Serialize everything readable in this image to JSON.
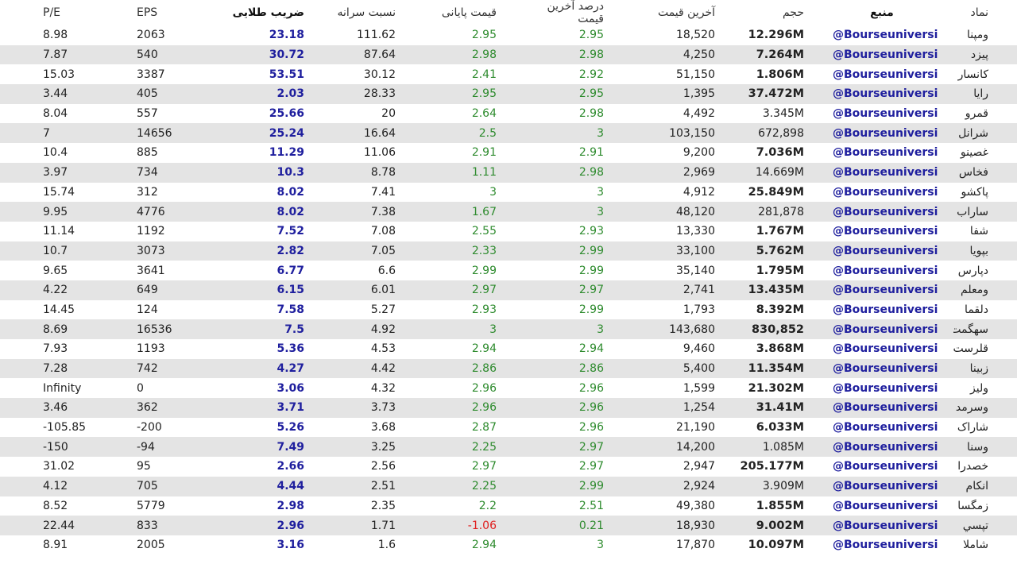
{
  "colors": {
    "gold_blue": "#1f1f9e",
    "positive_green": "#2e8b2e",
    "negative_red": "#e02020",
    "row_stripe": "#e4e4e4"
  },
  "headers": {
    "pe": "P/E",
    "eps": "EPS",
    "gold_ratio": "ضریب طلایی",
    "per_share_ratio": "نسبت سرانه",
    "closing_price": "قیمت پایانی",
    "last_price_pct": "درصد آخرین قیمت",
    "last_price": "آخرین قیمت",
    "volume": "حجم",
    "source": "منبع",
    "symbol": "نماد"
  },
  "rows": [
    {
      "pe": "8.98",
      "eps": "2063",
      "gold": "23.18",
      "ratio": "111.62",
      "close": "2.95",
      "pct": "2.95",
      "last": "18,520",
      "vol": "12.296M",
      "vol_bold": true,
      "src": "@Bourseuniversi",
      "sym": "ومپنا"
    },
    {
      "pe": "7.87",
      "eps": "540",
      "gold": "30.72",
      "ratio": "87.64",
      "close": "2.98",
      "pct": "2.98",
      "last": "4,250",
      "vol": "7.264M",
      "vol_bold": true,
      "src": "@Bourseuniversi",
      "sym": "پیزد"
    },
    {
      "pe": "15.03",
      "eps": "3387",
      "gold": "53.51",
      "ratio": "30.12",
      "close": "2.41",
      "pct": "2.92",
      "last": "51,150",
      "vol": "1.806M",
      "vol_bold": true,
      "src": "@Bourseuniversi",
      "sym": "کانسار"
    },
    {
      "pe": "3.44",
      "eps": "405",
      "gold": "2.03",
      "ratio": "28.33",
      "close": "2.95",
      "pct": "2.95",
      "last": "1,395",
      "vol": "37.472M",
      "vol_bold": true,
      "src": "@Bourseuniversi",
      "sym": "رایا"
    },
    {
      "pe": "8.04",
      "eps": "557",
      "gold": "25.66",
      "ratio": "20",
      "close": "2.64",
      "pct": "2.98",
      "last": "4,492",
      "vol": "3.345M",
      "vol_bold": false,
      "src": "@Bourseuniversi",
      "sym": "قمرو"
    },
    {
      "pe": "7",
      "eps": "14656",
      "gold": "25.24",
      "ratio": "16.64",
      "close": "2.5",
      "pct": "3",
      "last": "103,150",
      "vol": "672,898",
      "vol_bold": false,
      "src": "@Bourseuniversi",
      "sym": "شرانل"
    },
    {
      "pe": "10.4",
      "eps": "885",
      "gold": "11.29",
      "ratio": "11.06",
      "close": "2.91",
      "pct": "2.91",
      "last": "9,200",
      "vol": "7.036M",
      "vol_bold": true,
      "src": "@Bourseuniversi",
      "sym": "غصینو"
    },
    {
      "pe": "3.97",
      "eps": "734",
      "gold": "10.3",
      "ratio": "8.78",
      "close": "1.11",
      "pct": "2.98",
      "last": "2,969",
      "vol": "14.669M",
      "vol_bold": false,
      "src": "@Bourseuniversi",
      "sym": "فخاس"
    },
    {
      "pe": "15.74",
      "eps": "312",
      "gold": "8.02",
      "ratio": "7.41",
      "close": "3",
      "pct": "3",
      "last": "4,912",
      "vol": "25.849M",
      "vol_bold": true,
      "src": "@Bourseuniversi",
      "sym": "پاکشو"
    },
    {
      "pe": "9.95",
      "eps": "4776",
      "gold": "8.02",
      "ratio": "7.38",
      "close": "1.67",
      "pct": "3",
      "last": "48,120",
      "vol": "281,878",
      "vol_bold": false,
      "src": "@Bourseuniversi",
      "sym": "ساراب"
    },
    {
      "pe": "11.14",
      "eps": "1192",
      "gold": "7.52",
      "ratio": "7.08",
      "close": "2.55",
      "pct": "2.93",
      "last": "13,330",
      "vol": "1.767M",
      "vol_bold": true,
      "src": "@Bourseuniversi",
      "sym": "شفا"
    },
    {
      "pe": "10.7",
      "eps": "3073",
      "gold": "2.82",
      "ratio": "7.05",
      "close": "2.33",
      "pct": "2.99",
      "last": "33,100",
      "vol": "5.762M",
      "vol_bold": true,
      "src": "@Bourseuniversi",
      "sym": "بپویا"
    },
    {
      "pe": "9.65",
      "eps": "3641",
      "gold": "6.77",
      "ratio": "6.6",
      "close": "2.99",
      "pct": "2.99",
      "last": "35,140",
      "vol": "1.795M",
      "vol_bold": true,
      "src": "@Bourseuniversi",
      "sym": "دپارس"
    },
    {
      "pe": "4.22",
      "eps": "649",
      "gold": "6.15",
      "ratio": "6.01",
      "close": "2.97",
      "pct": "2.97",
      "last": "2,741",
      "vol": "13.435M",
      "vol_bold": true,
      "src": "@Bourseuniversi",
      "sym": "ومعلم"
    },
    {
      "pe": "14.45",
      "eps": "124",
      "gold": "7.58",
      "ratio": "5.27",
      "close": "2.93",
      "pct": "2.99",
      "last": "1,793",
      "vol": "8.392M",
      "vol_bold": true,
      "src": "@Bourseuniversi",
      "sym": "دلقما"
    },
    {
      "pe": "8.69",
      "eps": "16536",
      "gold": "7.5",
      "ratio": "4.92",
      "close": "3",
      "pct": "3",
      "last": "143,680",
      "vol": "830,852",
      "vol_bold": true,
      "src": "@Bourseuniversi",
      "sym": "سهگمت"
    },
    {
      "pe": "7.93",
      "eps": "1193",
      "gold": "5.36",
      "ratio": "4.53",
      "close": "2.94",
      "pct": "2.94",
      "last": "9,460",
      "vol": "3.868M",
      "vol_bold": true,
      "src": "@Bourseuniversi",
      "sym": "قلرست"
    },
    {
      "pe": "7.28",
      "eps": "742",
      "gold": "4.27",
      "ratio": "4.42",
      "close": "2.86",
      "pct": "2.86",
      "last": "5,400",
      "vol": "11.354M",
      "vol_bold": true,
      "src": "@Bourseuniversi",
      "sym": "زبینا"
    },
    {
      "pe": "Infinity",
      "eps": "0",
      "gold": "3.06",
      "ratio": "4.32",
      "close": "2.96",
      "pct": "2.96",
      "last": "1,599",
      "vol": "21.302M",
      "vol_bold": true,
      "src": "@Bourseuniversi",
      "sym": "ولیز"
    },
    {
      "pe": "3.46",
      "eps": "362",
      "gold": "3.71",
      "ratio": "3.73",
      "close": "2.96",
      "pct": "2.96",
      "last": "1,254",
      "vol": "31.41M",
      "vol_bold": true,
      "src": "@Bourseuniversi",
      "sym": "وسرمد"
    },
    {
      "pe": "-105.85",
      "eps": "-200",
      "gold": "5.26",
      "ratio": "3.68",
      "close": "2.87",
      "pct": "2.96",
      "last": "21,190",
      "vol": "6.033M",
      "vol_bold": true,
      "src": "@Bourseuniversi",
      "sym": "شاراک"
    },
    {
      "pe": "-150",
      "eps": "-94",
      "gold": "7.49",
      "ratio": "3.25",
      "close": "2.25",
      "pct": "2.97",
      "last": "14,200",
      "vol": "1.085M",
      "vol_bold": false,
      "src": "@Bourseuniversi",
      "sym": "وسنا"
    },
    {
      "pe": "31.02",
      "eps": "95",
      "gold": "2.66",
      "ratio": "2.56",
      "close": "2.97",
      "pct": "2.97",
      "last": "2,947",
      "vol": "205.177M",
      "vol_bold": true,
      "src": "@Bourseuniversi",
      "sym": "خصدرا"
    },
    {
      "pe": "4.12",
      "eps": "705",
      "gold": "4.44",
      "ratio": "2.51",
      "close": "2.25",
      "pct": "2.99",
      "last": "2,924",
      "vol": "3.909M",
      "vol_bold": false,
      "src": "@Bourseuniversi",
      "sym": "انکام"
    },
    {
      "pe": "8.52",
      "eps": "5779",
      "gold": "2.98",
      "ratio": "2.35",
      "close": "2.2",
      "pct": "2.51",
      "last": "49,380",
      "vol": "1.855M",
      "vol_bold": true,
      "src": "@Bourseuniversi",
      "sym": "زمگسا"
    },
    {
      "pe": "22.44",
      "eps": "833",
      "gold": "2.96",
      "ratio": "1.71",
      "close": "-1.06",
      "pct": "0.21",
      "last": "18,930",
      "vol": "9.002M",
      "vol_bold": true,
      "src": "@Bourseuniversi",
      "sym": "تپسي"
    },
    {
      "pe": "8.91",
      "eps": "2005",
      "gold": "3.16",
      "ratio": "1.6",
      "close": "2.94",
      "pct": "3",
      "last": "17,870",
      "vol": "10.097M",
      "vol_bold": true,
      "src": "@Bourseuniversi",
      "sym": "شاملا"
    }
  ]
}
